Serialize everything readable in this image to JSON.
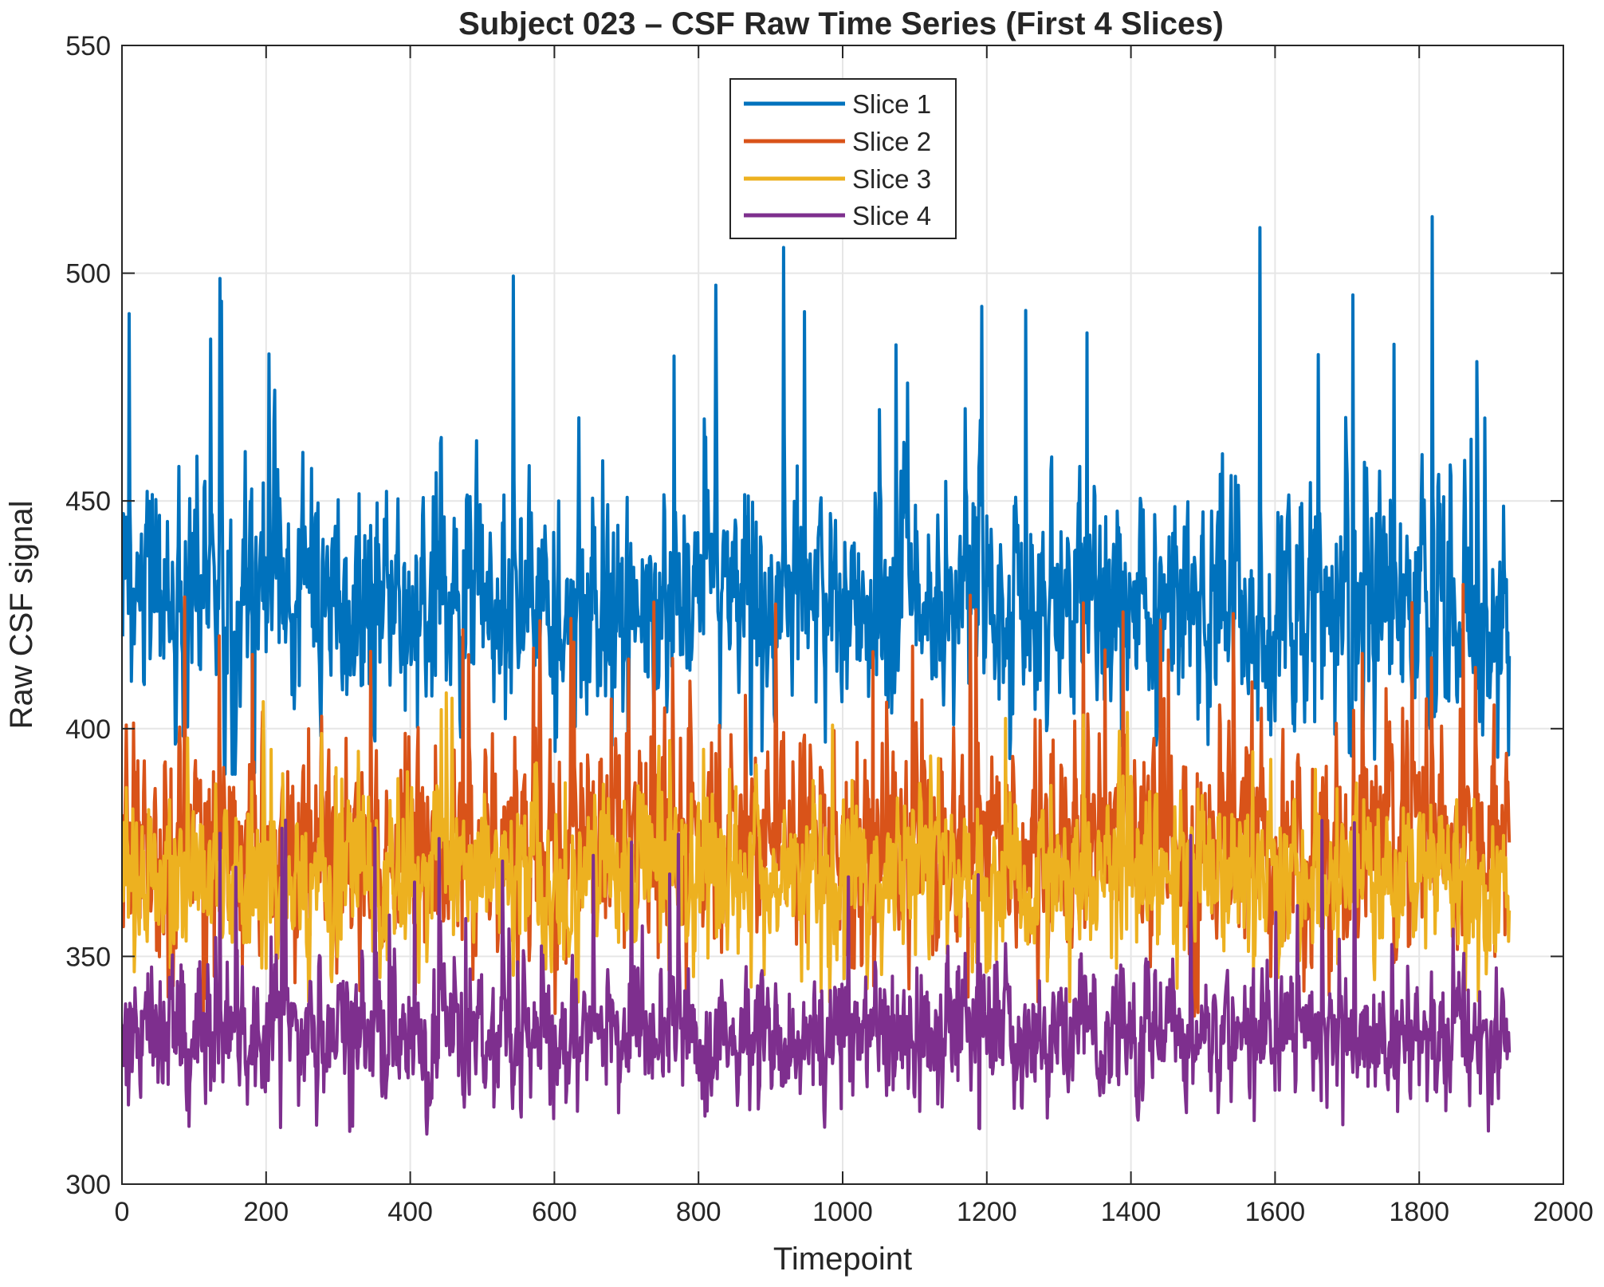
{
  "chart_data": {
    "type": "line",
    "title": "Subject 023 – CSF Raw Time Series (First 4 Slices)",
    "xlabel": "Timepoint",
    "ylabel": "Raw CSF signal",
    "xlim": [
      0,
      2000
    ],
    "ylim": [
      300,
      550
    ],
    "xticks": [
      0,
      200,
      400,
      600,
      800,
      1000,
      1200,
      1400,
      1600,
      1800,
      2000
    ],
    "yticks": [
      300,
      350,
      400,
      450,
      500,
      550
    ],
    "xtick_labels": [
      "0",
      "200",
      "400",
      "600",
      "800",
      "1000",
      "1200",
      "1400",
      "1600",
      "1800",
      "2000"
    ],
    "ytick_labels": [
      "300",
      "350",
      "400",
      "450",
      "500",
      "550"
    ],
    "grid": true,
    "legend_position": "top-center",
    "n_timepoints": 1925,
    "series": [
      {
        "name": "Slice 1",
        "color": "#0072BD",
        "mean": 428,
        "low_band": 405,
        "high_band": 452,
        "peak_max": 513,
        "trough_min": 390
      },
      {
        "name": "Slice 2",
        "color": "#D95319",
        "mean": 375,
        "low_band": 355,
        "high_band": 398,
        "peak_max": 432,
        "trough_min": 336
      },
      {
        "name": "Slice 3",
        "color": "#EDB120",
        "mean": 368,
        "low_band": 352,
        "high_band": 385,
        "peak_max": 408,
        "trough_min": 340
      },
      {
        "name": "Slice 4",
        "color": "#7E2F8E",
        "mean": 333,
        "low_band": 320,
        "high_band": 346,
        "peak_max": 381,
        "trough_min": 311
      }
    ]
  }
}
